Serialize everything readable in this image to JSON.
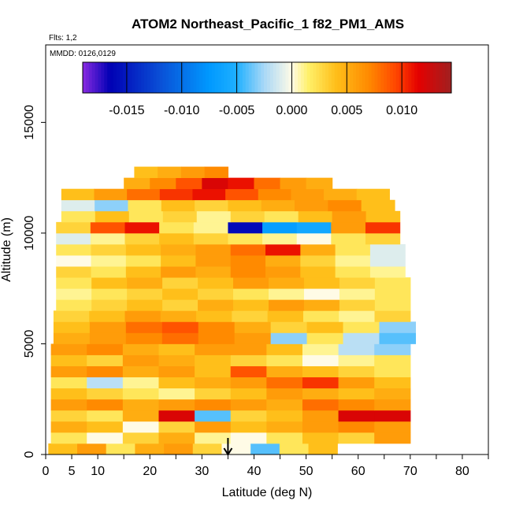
{
  "chart_data": {
    "type": "heatmap",
    "title": "ATOM2 Northeast_Pacific_1 f82_PM1_AMS",
    "flights_text": "Flts: 1,2",
    "mmdd_text": "MMDD: 0126,0129",
    "xlabel": "Latitude (deg N)",
    "ylabel": "Altitude (m)",
    "xlim": [
      0,
      85
    ],
    "ylim": [
      0,
      18500
    ],
    "x_ticks": [
      0,
      5,
      10,
      20,
      30,
      40,
      50,
      60,
      70,
      80
    ],
    "x_tick_labels": [
      "0",
      "5",
      "10",
      "20",
      "30",
      "40",
      "50",
      "60",
      "70",
      "80"
    ],
    "x_minor_ticks": [
      15,
      25,
      35,
      45,
      55,
      65,
      75,
      85
    ],
    "y_ticks": [
      0,
      5000,
      10000,
      15000
    ],
    "y_tick_labels": [
      "0",
      "5000",
      "10000",
      "15000"
    ],
    "colorbar": {
      "range": [
        -0.019,
        0.0145
      ],
      "ticks": [
        -0.015,
        -0.01,
        -0.005,
        0.0,
        0.005,
        0.01
      ],
      "tick_labels": [
        "-0.015",
        "-0.010",
        "-0.005",
        "0.000",
        "0.005",
        "0.010"
      ],
      "stops": [
        {
          "v": -0.019,
          "c": "#8a2be2"
        },
        {
          "v": -0.0165,
          "c": "#0000b4"
        },
        {
          "v": -0.012,
          "c": "#0a4fd6"
        },
        {
          "v": -0.0075,
          "c": "#0099ff"
        },
        {
          "v": -0.005,
          "c": "#1fb0ff"
        },
        {
          "v": -0.0025,
          "c": "#a9d8f7"
        },
        {
          "v": 0.0,
          "c": "#fffbe6"
        },
        {
          "v": 0.0015,
          "c": "#fff06a"
        },
        {
          "v": 0.004,
          "c": "#ffbf1a"
        },
        {
          "v": 0.007,
          "c": "#ff8a00"
        },
        {
          "v": 0.0095,
          "c": "#ff4500"
        },
        {
          "v": 0.0115,
          "c": "#e40000"
        },
        {
          "v": 0.0145,
          "c": "#a02020"
        }
      ]
    },
    "flight_marker_latitude": 35,
    "layers": [
      {
        "alt_min": 0,
        "alt_max": 500,
        "lat": [
          0.5,
          56
        ],
        "values": [
          0.004,
          0.006,
          0.002,
          0.005,
          0.006,
          0.003,
          0.0,
          -0.004,
          0.002,
          0.004
        ]
      },
      {
        "alt_min": 500,
        "alt_max": 1000,
        "lat": [
          1,
          70
        ],
        "values": [
          0.002,
          0.0,
          0.003,
          0.005,
          0.001,
          0.0,
          0.002,
          0.004,
          0.003,
          0.006
        ]
      },
      {
        "alt_min": 1000,
        "alt_max": 1500,
        "lat": [
          1,
          70
        ],
        "values": [
          0.005,
          0.004,
          0.0,
          0.003,
          0.006,
          0.004,
          0.005,
          0.006,
          0.007,
          0.006
        ]
      },
      {
        "alt_min": 1500,
        "alt_max": 2000,
        "lat": [
          1,
          70
        ],
        "values": [
          0.003,
          0.002,
          0.005,
          0.012,
          -0.004,
          0.003,
          0.004,
          0.006,
          0.012,
          0.012
        ]
      },
      {
        "alt_min": 2000,
        "alt_max": 2500,
        "lat": [
          1,
          70
        ],
        "values": [
          0.006,
          0.007,
          0.005,
          0.006,
          0.007,
          0.006,
          0.005,
          0.008,
          0.007,
          0.006
        ]
      },
      {
        "alt_min": 2500,
        "alt_max": 3000,
        "lat": [
          1,
          70
        ],
        "values": [
          0.004,
          0.003,
          0.002,
          0.001,
          0.003,
          0.004,
          0.006,
          0.005,
          0.004,
          0.005
        ]
      },
      {
        "alt_min": 3000,
        "alt_max": 3500,
        "lat": [
          1,
          70
        ],
        "values": [
          0.002,
          -0.002,
          0.001,
          0.004,
          0.005,
          0.006,
          0.008,
          0.01,
          0.006,
          0.004
        ]
      },
      {
        "alt_min": 3500,
        "alt_max": 4000,
        "lat": [
          1,
          70
        ],
        "values": [
          0.006,
          0.007,
          0.005,
          0.006,
          0.004,
          0.009,
          0.005,
          0.004,
          0.003,
          0.002
        ]
      },
      {
        "alt_min": 4000,
        "alt_max": 4500,
        "lat": [
          1,
          70
        ],
        "values": [
          0.004,
          0.003,
          0.006,
          0.005,
          0.004,
          0.003,
          0.002,
          0.0,
          0.001,
          0.002
        ]
      },
      {
        "alt_min": 4500,
        "alt_max": 5000,
        "lat": [
          1,
          70
        ],
        "values": [
          0.006,
          0.007,
          0.005,
          0.004,
          0.006,
          0.006,
          0.004,
          0.001,
          -0.002,
          -0.003
        ]
      },
      {
        "alt_min": 5000,
        "alt_max": 5500,
        "lat": [
          1.5,
          71
        ],
        "values": [
          0.005,
          0.006,
          0.007,
          0.008,
          0.007,
          0.006,
          -0.003,
          0.002,
          -0.002,
          -0.004
        ]
      },
      {
        "alt_min": 5500,
        "alt_max": 6000,
        "lat": [
          1.5,
          71
        ],
        "values": [
          0.004,
          0.006,
          0.008,
          0.009,
          0.007,
          0.005,
          0.003,
          0.004,
          0.002,
          -0.003
        ]
      },
      {
        "alt_min": 6000,
        "alt_max": 6500,
        "lat": [
          1.5,
          70
        ],
        "values": [
          0.003,
          0.004,
          0.006,
          0.005,
          0.004,
          0.003,
          0.004,
          0.002,
          0.001,
          0.003
        ]
      },
      {
        "alt_min": 6500,
        "alt_max": 7000,
        "lat": [
          2,
          70
        ],
        "values": [
          0.002,
          0.003,
          0.004,
          0.003,
          0.005,
          0.004,
          0.006,
          0.005,
          0.003,
          0.002
        ]
      },
      {
        "alt_min": 7000,
        "alt_max": 7500,
        "lat": [
          2,
          70
        ],
        "values": [
          0.001,
          0.002,
          0.003,
          0.004,
          0.003,
          0.002,
          0.001,
          0.0,
          0.001,
          0.002
        ]
      },
      {
        "alt_min": 7500,
        "alt_max": 8000,
        "lat": [
          2,
          70
        ],
        "values": [
          0.002,
          0.004,
          0.005,
          0.003,
          0.004,
          0.006,
          0.005,
          0.004,
          0.003,
          0.002
        ]
      },
      {
        "alt_min": 8000,
        "alt_max": 8500,
        "lat": [
          2,
          69
        ],
        "values": [
          0.003,
          0.002,
          0.004,
          0.006,
          0.005,
          0.007,
          0.006,
          0.004,
          0.002,
          0.001
        ]
      },
      {
        "alt_min": 8500,
        "alt_max": 9000,
        "lat": [
          2,
          69
        ],
        "values": [
          0.0,
          0.001,
          0.002,
          0.004,
          0.006,
          0.007,
          0.005,
          0.003,
          0.001,
          -0.001
        ]
      },
      {
        "alt_min": 9000,
        "alt_max": 9500,
        "lat": [
          2,
          69
        ],
        "values": [
          0.002,
          0.003,
          0.004,
          0.005,
          0.006,
          0.008,
          0.011,
          0.005,
          0.002,
          -0.001
        ]
      },
      {
        "alt_min": 9500,
        "alt_max": 10000,
        "lat": [
          2,
          68
        ],
        "values": [
          -0.001,
          0.001,
          0.003,
          0.004,
          0.003,
          0.002,
          0.001,
          0.0,
          0.002,
          0.003
        ]
      },
      {
        "alt_min": 10000,
        "alt_max": 10500,
        "lat": [
          2,
          68
        ],
        "values": [
          0.003,
          0.009,
          0.011,
          0.002,
          0.001,
          -0.016,
          -0.007,
          -0.006,
          0.006,
          0.01
        ]
      },
      {
        "alt_min": 10500,
        "alt_max": 11000,
        "lat": [
          3,
          68
        ],
        "values": [
          0.002,
          0.004,
          0.002,
          0.003,
          0.001,
          0.003,
          0.002,
          0.004,
          0.006,
          0.004
        ]
      },
      {
        "alt_min": 11000,
        "alt_max": 11500,
        "lat": [
          3,
          67
        ],
        "values": [
          -0.001,
          -0.003,
          0.002,
          0.004,
          0.003,
          0.004,
          0.005,
          0.006,
          0.007,
          0.004
        ]
      },
      {
        "alt_min": 11500,
        "alt_max": 12000,
        "lat": [
          3,
          66
        ],
        "values": [
          0.004,
          0.006,
          0.008,
          0.01,
          0.011,
          0.009,
          0.007,
          0.006,
          0.005,
          0.004
        ]
      },
      {
        "alt_min": 12000,
        "alt_max": 12500,
        "lat": [
          15,
          55
        ],
        "values": [
          0.005,
          0.007,
          0.009,
          0.012,
          0.011,
          0.008,
          0.006,
          0.005
        ]
      },
      {
        "alt_min": 12500,
        "alt_max": 13000,
        "lat": [
          17,
          35
        ],
        "values": [
          0.004,
          0.005,
          0.006,
          0.007
        ]
      }
    ]
  }
}
